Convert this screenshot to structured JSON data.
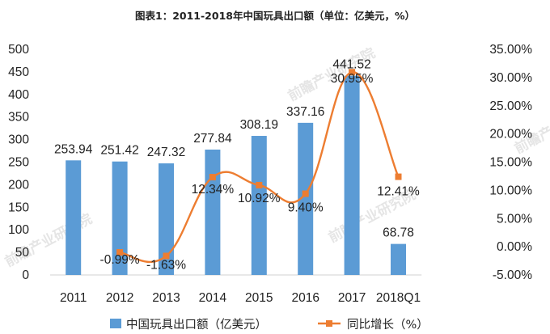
{
  "chart_data": {
    "type": "bar",
    "title": "图表1：2011-2018年中国玩具出口额（单位：亿美元，%）",
    "categories": [
      "2011",
      "2012",
      "2013",
      "2014",
      "2015",
      "2016",
      "2017",
      "2018Q1"
    ],
    "series": [
      {
        "name": "中国玩具出口额（亿美元）",
        "type": "bar",
        "axis": "left",
        "color": "#5b9bd5",
        "values": [
          253.94,
          251.42,
          247.32,
          277.84,
          308.19,
          337.16,
          441.52,
          68.78
        ],
        "labels": [
          "253.94",
          "251.42",
          "247.32",
          "277.84",
          "308.19",
          "337.16",
          "441.52",
          "68.78"
        ]
      },
      {
        "name": "同比增长（%）",
        "type": "line",
        "axis": "right",
        "smooth": true,
        "color": "#ed7d31",
        "values": [
          null,
          -0.99,
          -1.63,
          12.34,
          10.92,
          9.4,
          30.95,
          12.41
        ],
        "labels": [
          "",
          "-0.99%",
          "-1.63%",
          "12.34%",
          "10.92%",
          "9.40%",
          "30.95%",
          "12.41%"
        ]
      }
    ],
    "y_left": {
      "min": 0,
      "max": 500,
      "step": 50,
      "ticks": [
        "0",
        "50",
        "100",
        "150",
        "200",
        "250",
        "300",
        "350",
        "400",
        "450",
        "500"
      ]
    },
    "y_right": {
      "min": -5,
      "max": 35,
      "step": 5,
      "ticks": [
        "-5.00%",
        "0.00%",
        "5.00%",
        "10.00%",
        "15.00%",
        "20.00%",
        "25.00%",
        "30.00%",
        "35.00%"
      ]
    },
    "grid": false,
    "legend": "bottom"
  },
  "watermark": "前瞻产业研究院"
}
